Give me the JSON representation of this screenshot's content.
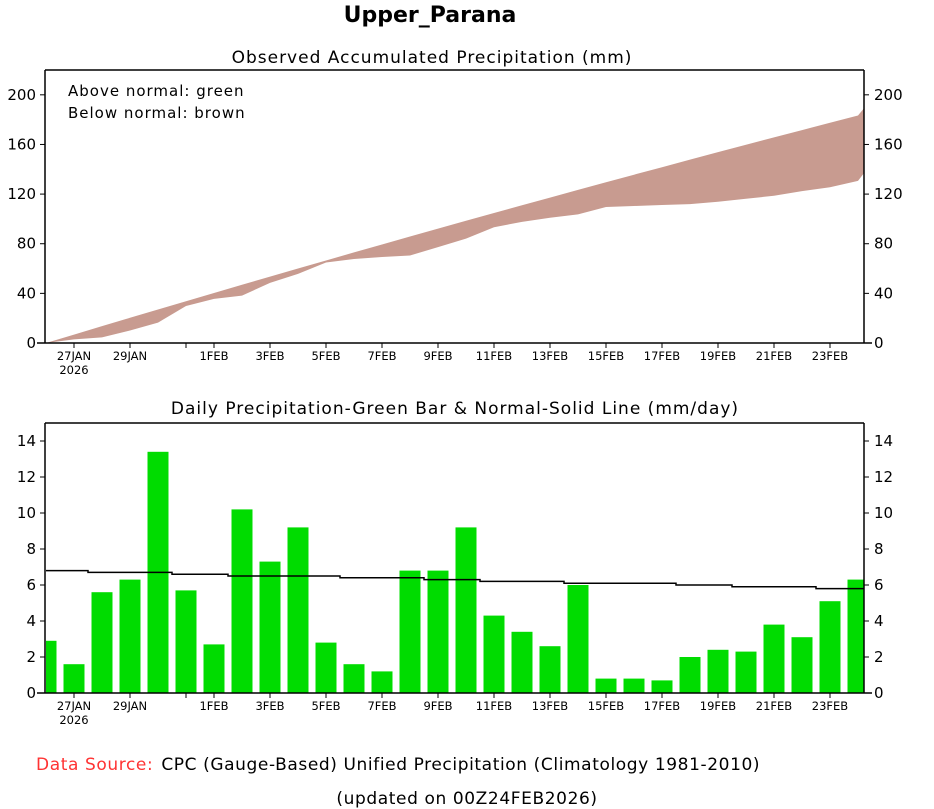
{
  "page_title": "Upper_Parana",
  "footer": {
    "source_label": "Data Source:",
    "source_text": "CPC (Gauge-Based) Unified Precipitation (Climatology 1981-2010)",
    "updated": "(updated on 00Z24FEB2026)"
  },
  "colors": {
    "below_fill": "#c89b90",
    "above_fill": "#00c800",
    "bar": "#00dc00",
    "normal_line": "#000000",
    "source_label": "#ff3333"
  },
  "chart_data": [
    {
      "type": "area",
      "title": "Observed Accumulated Precipitation (mm)",
      "legend_notes": [
        "Above normal: green",
        "Below normal: brown"
      ],
      "xlabel": "",
      "ylabel": "",
      "ylim": [
        0,
        220
      ],
      "yticks": [
        0,
        40,
        80,
        120,
        160,
        200
      ],
      "x_start": "26JAN2026",
      "xticks": [
        {
          "day_index": 1,
          "label": "27JAN",
          "sublabel": "2026"
        },
        {
          "day_index": 3,
          "label": "29JAN"
        },
        {
          "day_index": 5,
          "label": ""
        },
        {
          "day_index": 6,
          "label": "1FEB"
        },
        {
          "day_index": 8,
          "label": "3FEB"
        },
        {
          "day_index": 10,
          "label": "5FEB"
        },
        {
          "day_index": 12,
          "label": "7FEB"
        },
        {
          "day_index": 14,
          "label": "9FEB"
        },
        {
          "day_index": 16,
          "label": "11FEB"
        },
        {
          "day_index": 18,
          "label": "13FEB"
        },
        {
          "day_index": 20,
          "label": "15FEB"
        },
        {
          "day_index": 22,
          "label": "17FEB"
        },
        {
          "day_index": 24,
          "label": "19FEB"
        },
        {
          "day_index": 26,
          "label": "21FEB"
        },
        {
          "day_index": 28,
          "label": "23FEB"
        }
      ],
      "series": [
        {
          "name": "Observed accumulated",
          "values": [
            2.9,
            4.5,
            10.1,
            16.4,
            29.8,
            35.5,
            38.2,
            48.4,
            55.7,
            64.9,
            67.7,
            69.3,
            70.5,
            77.3,
            84.1,
            93.3,
            97.6,
            101.0,
            103.6,
            109.6,
            110.4,
            111.2,
            111.9,
            113.9,
            116.3,
            118.6,
            122.4,
            125.5,
            130.6,
            136.9
          ]
        },
        {
          "name": "Normal accumulated",
          "values": [
            6.8,
            13.6,
            20.3,
            27.0,
            33.7,
            40.3,
            46.9,
            53.5,
            60.0,
            66.5,
            73.0,
            79.4,
            85.8,
            92.2,
            98.5,
            104.8,
            111.0,
            117.2,
            123.4,
            129.5,
            135.6,
            141.7,
            147.8,
            153.8,
            159.8,
            165.7,
            171.6,
            177.5,
            183.3,
            189.1
          ]
        }
      ]
    },
    {
      "type": "bar",
      "title": "Daily Precipitation-Green Bar & Normal-Solid Line (mm/day)",
      "xlabel": "",
      "ylabel": "",
      "ylim": [
        0,
        15
      ],
      "yticks": [
        0,
        2,
        4,
        6,
        8,
        10,
        12,
        14
      ],
      "categories": [
        "26JAN",
        "27JAN",
        "28JAN",
        "29JAN",
        "30JAN",
        "31JAN",
        "1FEB",
        "2FEB",
        "3FEB",
        "4FEB",
        "5FEB",
        "6FEB",
        "7FEB",
        "8FEB",
        "9FEB",
        "10FEB",
        "11FEB",
        "12FEB",
        "13FEB",
        "14FEB",
        "15FEB",
        "16FEB",
        "17FEB",
        "18FEB",
        "19FEB",
        "20FEB",
        "21FEB",
        "22FEB",
        "23FEB",
        "24FEB"
      ],
      "series": [
        {
          "name": "Daily precipitation",
          "values": [
            2.9,
            1.6,
            5.6,
            6.3,
            13.4,
            5.7,
            2.7,
            10.2,
            7.3,
            9.2,
            2.8,
            1.6,
            1.2,
            6.8,
            6.8,
            9.2,
            4.3,
            3.4,
            2.6,
            6.0,
            0.8,
            0.8,
            0.7,
            2.0,
            2.4,
            2.3,
            3.8,
            3.1,
            5.1,
            6.3
          ]
        },
        {
          "name": "Normal",
          "values": [
            6.8,
            6.8,
            6.7,
            6.7,
            6.7,
            6.6,
            6.6,
            6.5,
            6.5,
            6.5,
            6.5,
            6.4,
            6.4,
            6.4,
            6.3,
            6.3,
            6.2,
            6.2,
            6.2,
            6.1,
            6.1,
            6.1,
            6.1,
            6.0,
            6.0,
            5.9,
            5.9,
            5.9,
            5.8,
            5.8
          ]
        }
      ]
    }
  ]
}
